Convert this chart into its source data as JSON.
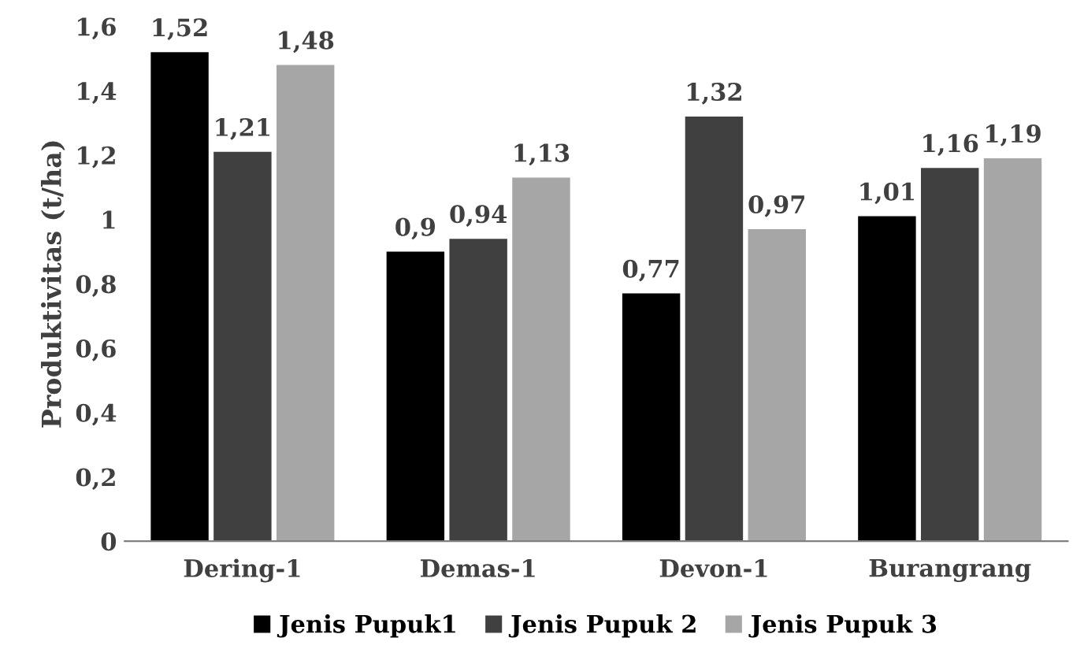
{
  "chart_data": {
    "type": "bar",
    "ylabel": "Produktivitas (t/ha)",
    "categories": [
      "Dering-1",
      "Demas-1",
      "Devon-1",
      "Burangrang"
    ],
    "series": [
      {
        "name": "Jenis Pupuk1",
        "color": "#000000",
        "values": [
          1.52,
          0.9,
          0.77,
          1.01
        ],
        "value_labels": [
          "1,52",
          "0,9",
          "0,77",
          "1,01"
        ]
      },
      {
        "name": "Jenis Pupuk 2",
        "color": "#404040",
        "values": [
          1.21,
          0.94,
          1.32,
          1.16
        ],
        "value_labels": [
          "1,21",
          "0,94",
          "1,32",
          "1,16"
        ]
      },
      {
        "name": "Jenis Pupuk 3",
        "color": "#a6a6a6",
        "values": [
          1.48,
          1.13,
          0.97,
          1.19
        ],
        "value_labels": [
          "1,48",
          "1,13",
          "0,97",
          "1,19"
        ]
      }
    ],
    "ylim": [
      0,
      1.6
    ],
    "yticks": [
      {
        "value": 0,
        "label": "0"
      },
      {
        "value": 0.2,
        "label": "0,2"
      },
      {
        "value": 0.4,
        "label": "0,4"
      },
      {
        "value": 0.6,
        "label": "0,6"
      },
      {
        "value": 0.8,
        "label": "0,8"
      },
      {
        "value": 1,
        "label": "1"
      },
      {
        "value": 1.2,
        "label": "1,2"
      },
      {
        "value": 1.4,
        "label": "1,4"
      },
      {
        "value": 1.6,
        "label": "1,6"
      }
    ],
    "grid": false,
    "legend": "bottom"
  }
}
